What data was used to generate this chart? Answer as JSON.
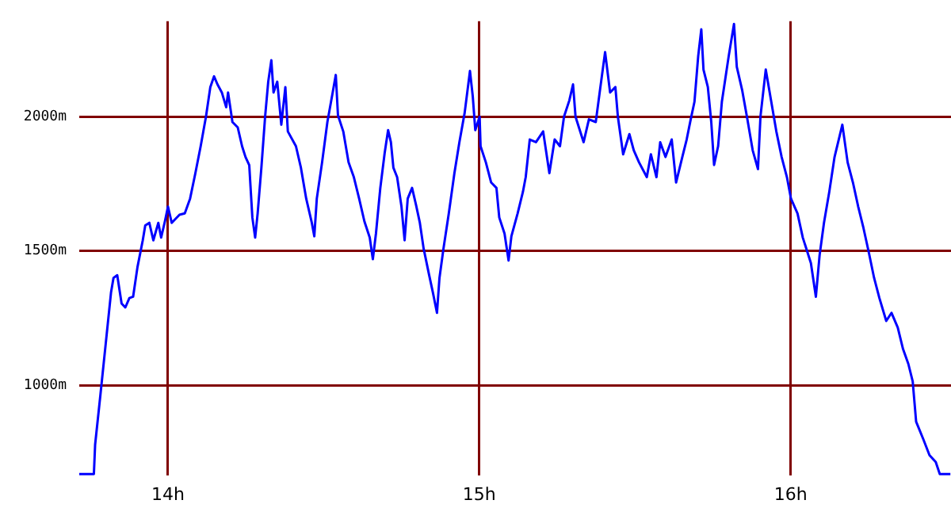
{
  "chart_data": {
    "type": "line",
    "xlim": [
      13.715,
      16.515
    ],
    "ylim": [
      665,
      2355
    ],
    "xticks": [
      {
        "value": 14,
        "label": "14h"
      },
      {
        "value": 15,
        "label": "15h"
      },
      {
        "value": 16,
        "label": "16h"
      }
    ],
    "yticks": [
      {
        "value": 1000,
        "label": "1000m"
      },
      {
        "value": 1500,
        "label": "1500m"
      },
      {
        "value": 2000,
        "label": "2000m"
      }
    ],
    "grid": true,
    "legend": false,
    "marker": "none",
    "line_style": "solid",
    "x": [
      13.715,
      13.762,
      13.766,
      13.783,
      13.8,
      13.817,
      13.825,
      13.837,
      13.851,
      13.863,
      13.876,
      13.888,
      13.902,
      13.919,
      13.927,
      13.94,
      13.953,
      13.969,
      13.978,
      13.99,
      14.0,
      14.012,
      14.037,
      14.054,
      14.071,
      14.088,
      14.105,
      14.122,
      14.136,
      14.148,
      14.159,
      14.173,
      14.187,
      14.193,
      14.207,
      14.224,
      14.238,
      14.249,
      14.261,
      14.271,
      14.28,
      14.288,
      14.3,
      14.312,
      14.322,
      14.332,
      14.339,
      14.351,
      14.364,
      14.377,
      14.385,
      14.411,
      14.427,
      14.444,
      14.462,
      14.47,
      14.478,
      14.495,
      14.512,
      14.529,
      14.539,
      14.546,
      14.563,
      14.58,
      14.597,
      14.614,
      14.631,
      14.648,
      14.658,
      14.668,
      14.682,
      14.696,
      14.707,
      14.716,
      14.724,
      14.736,
      14.75,
      14.76,
      14.77,
      14.784,
      14.797,
      14.809,
      14.821,
      14.838,
      14.851,
      14.864,
      14.872,
      14.885,
      14.902,
      14.92,
      14.936,
      14.953,
      14.97,
      14.979,
      14.987,
      15.001,
      15.004,
      15.021,
      15.038,
      15.055,
      15.064,
      15.081,
      15.094,
      15.103,
      15.123,
      15.14,
      15.149,
      15.162,
      15.182,
      15.205,
      15.225,
      15.242,
      15.259,
      15.272,
      15.289,
      15.301,
      15.309,
      15.335,
      15.352,
      15.374,
      15.386,
      15.404,
      15.42,
      15.437,
      15.445,
      15.462,
      15.482,
      15.496,
      15.513,
      15.538,
      15.551,
      15.569,
      15.581,
      15.598,
      15.618,
      15.632,
      15.652,
      15.666,
      15.679,
      15.691,
      15.703,
      15.713,
      15.72,
      15.734,
      15.745,
      15.754,
      15.767,
      15.779,
      15.801,
      15.818,
      15.827,
      15.844,
      15.861,
      15.878,
      15.895,
      15.903,
      15.92,
      15.937,
      15.954,
      15.971,
      15.988,
      16.001,
      16.022,
      16.039,
      16.065,
      16.081,
      16.093,
      16.107,
      16.124,
      16.141,
      16.166,
      16.183,
      16.2,
      16.217,
      16.234,
      16.251,
      16.268,
      16.285,
      16.307,
      16.324,
      16.344,
      16.361,
      16.378,
      16.392,
      16.403,
      16.426,
      16.446,
      16.466,
      16.479,
      16.513
    ],
    "series": [
      {
        "color": "#0000ff",
        "values": [
          670,
          670,
          780,
          965,
          1155,
          1345,
          1400,
          1410,
          1305,
          1290,
          1325,
          1330,
          1440,
          1540,
          1595,
          1605,
          1540,
          1605,
          1550,
          1610,
          1665,
          1605,
          1635,
          1640,
          1695,
          1790,
          1890,
          2000,
          2110,
          2150,
          2120,
          2090,
          2035,
          2090,
          1980,
          1960,
          1890,
          1850,
          1820,
          1625,
          1550,
          1640,
          1810,
          2000,
          2130,
          2210,
          2090,
          2130,
          1970,
          2110,
          1945,
          1890,
          1810,
          1695,
          1605,
          1555,
          1695,
          1830,
          1980,
          2090,
          2155,
          2005,
          1945,
          1830,
          1775,
          1695,
          1610,
          1550,
          1470,
          1565,
          1735,
          1865,
          1950,
          1905,
          1810,
          1775,
          1665,
          1540,
          1695,
          1735,
          1670,
          1605,
          1510,
          1415,
          1345,
          1270,
          1400,
          1510,
          1640,
          1790,
          1905,
          2015,
          2170,
          2075,
          1950,
          2000,
          1890,
          1830,
          1755,
          1735,
          1625,
          1565,
          1465,
          1555,
          1640,
          1720,
          1775,
          1915,
          1905,
          1945,
          1790,
          1915,
          1890,
          2000,
          2060,
          2120,
          2000,
          1905,
          1990,
          1980,
          2085,
          2240,
          2090,
          2110,
          2000,
          1860,
          1935,
          1875,
          1830,
          1775,
          1860,
          1775,
          1905,
          1850,
          1915,
          1755,
          1850,
          1915,
          1990,
          2055,
          2225,
          2325,
          2175,
          2110,
          1980,
          1820,
          1890,
          2055,
          2225,
          2345,
          2185,
          2100,
          1990,
          1875,
          1805,
          2000,
          2175,
          2060,
          1945,
          1850,
          1775,
          1695,
          1640,
          1550,
          1455,
          1330,
          1485,
          1605,
          1720,
          1850,
          1970,
          1830,
          1755,
          1665,
          1585,
          1495,
          1400,
          1325,
          1240,
          1270,
          1215,
          1135,
          1080,
          1015,
          865,
          800,
          740,
          715,
          670,
          670
        ]
      }
    ]
  }
}
